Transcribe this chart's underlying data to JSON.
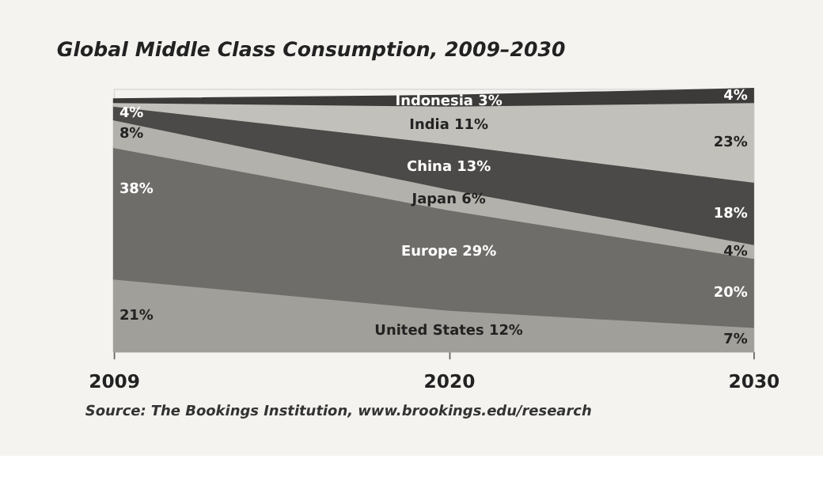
{
  "chart_data": {
    "type": "area",
    "stacked": true,
    "title": "Global Middle Class Consumption, 2009–2030",
    "x": [
      2009,
      2020,
      2030
    ],
    "xlim": [
      2009,
      2030
    ],
    "xticks": [
      2009,
      2020,
      2030
    ],
    "tick_labels": "x",
    "grid": false,
    "data_labels": true,
    "series": [
      {
        "name": "United States",
        "color": "#a19f99",
        "values": [
          21,
          12,
          7
        ],
        "value_labels": [
          "21%",
          "12%",
          "7%"
        ]
      },
      {
        "name": "Europe",
        "color": "#6f6d69",
        "values": [
          38,
          29,
          20
        ],
        "value_labels": [
          "38%",
          "29%",
          "20%"
        ]
      },
      {
        "name": "Japan",
        "color": "#b3b1ab",
        "values": [
          8,
          6,
          4
        ],
        "value_labels": [
          "8%",
          "6%",
          "4%"
        ]
      },
      {
        "name": "China",
        "color": "#4b4a48",
        "values": [
          4,
          13,
          18
        ],
        "value_labels": [
          "4%",
          "13%",
          "18%"
        ]
      },
      {
        "name": "India",
        "color": "#c2c0ba",
        "values": [
          1,
          11,
          23
        ],
        "value_labels": [
          null,
          "11%",
          "23%"
        ]
      },
      {
        "name": "Indonesia",
        "color": "#3c3b39",
        "values": [
          1,
          3,
          4
        ],
        "value_labels": [
          null,
          "3%",
          "4%"
        ]
      }
    ],
    "annotations": [
      "Source: The Bookings Institution, www.brookings.edu/research"
    ]
  }
}
